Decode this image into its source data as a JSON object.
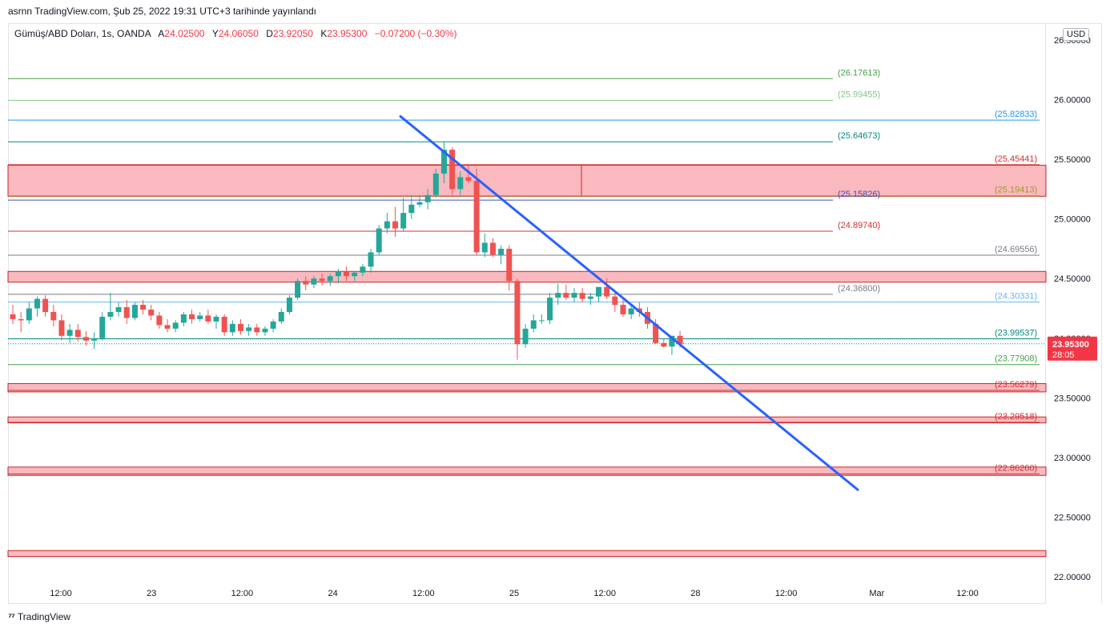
{
  "header": {
    "published_line": "asrnn TradingView.com, Şub 25, 2022 19:31 UTC+3 tarihinde yayınlandı"
  },
  "legend": {
    "symbol": "Gümüş/ABD Doları, 1s, OANDA",
    "open_label": "A",
    "open": "24.02500",
    "high_label": "Y",
    "high": "24.06050",
    "low_label": "D",
    "low": "23.92050",
    "close_label": "K",
    "close": "23.95300",
    "change": "−0.07200 (−0.30%)"
  },
  "currency": "USD",
  "footer": {
    "brand": "TradingView"
  },
  "colors": {
    "up": "#26a69a",
    "down": "#ef5350",
    "trend": "#2962ff",
    "zone": "#f7a1a8"
  },
  "chart_data": {
    "type": "candlestick",
    "ylim": [
      21.96,
      26.6
    ],
    "y_ticks": [
      "26.50000",
      "26.00000",
      "25.50000",
      "25.00000",
      "24.50000",
      "24.00000",
      "23.50000",
      "23.00000",
      "22.50000",
      "22.00000"
    ],
    "x_ticks": [
      "12:00",
      "23",
      "12:00",
      "24",
      "12:00",
      "25",
      "12:00",
      "28",
      "12:00",
      "Mar",
      "12:00"
    ],
    "last_price": {
      "value": "23.95300",
      "countdown": "28:05"
    },
    "candles": [
      [
        24.2,
        24.28,
        24.12,
        24.16
      ],
      [
        24.16,
        24.22,
        24.05,
        24.15
      ],
      [
        24.15,
        24.3,
        24.12,
        24.25
      ],
      [
        24.25,
        24.35,
        24.18,
        24.33
      ],
      [
        24.33,
        24.36,
        24.18,
        24.22
      ],
      [
        24.22,
        24.28,
        24.1,
        24.15
      ],
      [
        24.15,
        24.2,
        23.98,
        24.02
      ],
      [
        24.02,
        24.12,
        23.96,
        24.07
      ],
      [
        24.07,
        24.12,
        23.97,
        24.01
      ],
      [
        24.01,
        24.06,
        23.94,
        23.98
      ],
      [
        23.98,
        24.05,
        23.91,
        24.0
      ],
      [
        24.0,
        24.22,
        23.98,
        24.18
      ],
      [
        24.18,
        24.38,
        24.15,
        24.22
      ],
      [
        24.22,
        24.3,
        24.18,
        24.26
      ],
      [
        24.26,
        24.32,
        24.12,
        24.17
      ],
      [
        24.17,
        24.3,
        24.15,
        24.28
      ],
      [
        24.28,
        24.32,
        24.2,
        24.24
      ],
      [
        24.24,
        24.28,
        24.15,
        24.19
      ],
      [
        24.19,
        24.22,
        24.08,
        24.11
      ],
      [
        24.11,
        24.16,
        24.05,
        24.08
      ],
      [
        24.08,
        24.15,
        24.05,
        24.13
      ],
      [
        24.13,
        24.22,
        24.1,
        24.2
      ],
      [
        24.2,
        24.24,
        24.12,
        24.16
      ],
      [
        24.16,
        24.22,
        24.14,
        24.19
      ],
      [
        24.19,
        24.24,
        24.12,
        24.14
      ],
      [
        24.14,
        24.2,
        24.08,
        24.18
      ],
      [
        24.18,
        24.2,
        24.02,
        24.05
      ],
      [
        24.05,
        24.15,
        24.02,
        24.12
      ],
      [
        24.12,
        24.16,
        24.03,
        24.06
      ],
      [
        24.06,
        24.12,
        24.02,
        24.09
      ],
      [
        24.09,
        24.12,
        24.02,
        24.05
      ],
      [
        24.05,
        24.1,
        24.02,
        24.08
      ],
      [
        24.08,
        24.16,
        24.05,
        24.14
      ],
      [
        24.14,
        24.25,
        24.12,
        24.22
      ],
      [
        24.22,
        24.36,
        24.2,
        24.34
      ],
      [
        24.34,
        24.5,
        24.32,
        24.48
      ],
      [
        24.48,
        24.52,
        24.4,
        24.45
      ],
      [
        24.45,
        24.52,
        24.42,
        24.5
      ],
      [
        24.5,
        24.54,
        24.44,
        24.48
      ],
      [
        24.48,
        24.54,
        24.44,
        24.52
      ],
      [
        24.52,
        24.58,
        24.46,
        24.56
      ],
      [
        24.56,
        24.6,
        24.48,
        24.52
      ],
      [
        24.52,
        24.56,
        24.48,
        24.55
      ],
      [
        24.55,
        24.62,
        24.52,
        24.6
      ],
      [
        24.6,
        24.75,
        24.55,
        24.72
      ],
      [
        24.72,
        24.95,
        24.7,
        24.92
      ],
      [
        24.92,
        25.05,
        24.88,
        24.98
      ],
      [
        24.98,
        25.1,
        24.85,
        24.92
      ],
      [
        24.92,
        25.18,
        24.9,
        25.05
      ],
      [
        25.05,
        25.2,
        25.0,
        25.12
      ],
      [
        25.12,
        25.2,
        25.1,
        25.14
      ],
      [
        25.14,
        25.25,
        25.08,
        25.2
      ],
      [
        25.2,
        25.42,
        25.18,
        25.38
      ],
      [
        25.38,
        25.65,
        25.3,
        25.58
      ],
      [
        25.58,
        25.6,
        25.2,
        25.25
      ],
      [
        25.25,
        25.4,
        25.2,
        25.35
      ],
      [
        25.35,
        25.45,
        25.3,
        25.32
      ],
      [
        25.32,
        25.42,
        24.7,
        24.72
      ],
      [
        24.72,
        24.88,
        24.68,
        24.8
      ],
      [
        24.8,
        24.84,
        24.68,
        24.7
      ],
      [
        24.7,
        24.78,
        24.62,
        24.75
      ],
      [
        24.75,
        24.78,
        24.4,
        24.48
      ],
      [
        24.48,
        24.5,
        23.82,
        23.95
      ],
      [
        23.95,
        24.12,
        23.92,
        24.08
      ],
      [
        24.08,
        24.2,
        24.05,
        24.15
      ],
      [
        24.15,
        24.2,
        24.12,
        24.15
      ],
      [
        24.15,
        24.38,
        24.12,
        24.34
      ],
      [
        24.34,
        24.46,
        24.28,
        24.38
      ],
      [
        24.38,
        24.45,
        24.32,
        24.34
      ],
      [
        24.34,
        24.42,
        24.3,
        24.38
      ],
      [
        24.38,
        24.42,
        24.3,
        24.33
      ],
      [
        24.33,
        24.38,
        24.28,
        24.35
      ],
      [
        24.35,
        24.42,
        24.3,
        24.43
      ],
      [
        24.43,
        24.5,
        24.33,
        24.35
      ],
      [
        24.35,
        24.4,
        24.22,
        24.28
      ],
      [
        24.28,
        24.32,
        24.18,
        24.2
      ],
      [
        24.2,
        24.28,
        24.16,
        24.25
      ],
      [
        24.25,
        24.3,
        24.18,
        24.22
      ],
      [
        24.22,
        24.26,
        24.08,
        24.12
      ],
      [
        24.12,
        24.16,
        23.95,
        23.96
      ],
      [
        23.96,
        24.0,
        23.92,
        23.93
      ],
      [
        23.93,
        24.02,
        23.86,
        24.02
      ],
      [
        24.02,
        24.06,
        23.92,
        23.95
      ]
    ],
    "levels": [
      {
        "value": 26.17613,
        "label": "(26.17613)",
        "color": "#43a047",
        "end": "mid"
      },
      {
        "value": 25.99455,
        "label": "(25.99455)",
        "color": "#81c784",
        "end": "mid"
      },
      {
        "value": 25.82833,
        "label": "(25.82833)",
        "color": "#2196f3",
        "end": "full"
      },
      {
        "value": 25.64673,
        "label": "(25.64673)",
        "color": "#00897b",
        "end": "mid"
      },
      {
        "value": 25.45441,
        "label": "(25.45441)",
        "color": "#d32f2f",
        "end": "full"
      },
      {
        "value": 25.19413,
        "label": "(25.19413)",
        "color": "#9e9d24",
        "end": "full"
      },
      {
        "value": 25.15826,
        "label": "(25.15826)",
        "color": "#3f51b5",
        "end": "mid"
      },
      {
        "value": 24.8974,
        "label": "(24.89740)",
        "color": "#d32f2f",
        "end": "mid"
      },
      {
        "value": 24.69556,
        "label": "(24.69556)",
        "color": "#787b86",
        "end": "full"
      },
      {
        "value": 24.368,
        "label": "(24.36800)",
        "color": "#787b86",
        "end": "mid"
      },
      {
        "value": 24.30331,
        "label": "(24.30331)",
        "color": "#64b5f6",
        "end": "full"
      },
      {
        "value": 23.99537,
        "label": "(23.99537)",
        "color": "#00897b",
        "end": "full"
      },
      {
        "value": 23.77908,
        "label": "(23.77908)",
        "color": "#43a047",
        "end": "full"
      },
      {
        "value": 23.56279,
        "label": "(23.56279)",
        "color": "#d32f2f",
        "end": "full"
      },
      {
        "value": 23.29518,
        "label": "(23.29518)",
        "color": "#d32f2f",
        "end": "full"
      },
      {
        "value": 22.8626,
        "label": "(22.86260)",
        "color": "#d32f2f",
        "end": "full"
      }
    ],
    "zones": [
      {
        "top": 25.45,
        "bottom": 25.19
      },
      {
        "top": 24.56,
        "bottom": 24.47
      },
      {
        "top": 23.62,
        "bottom": 23.55
      },
      {
        "top": 23.34,
        "bottom": 23.29
      },
      {
        "top": 22.92,
        "bottom": 22.85
      },
      {
        "top": 22.22,
        "bottom": 22.17
      }
    ],
    "trendline": {
      "from_price": 25.86,
      "to_price": 22.73
    }
  }
}
